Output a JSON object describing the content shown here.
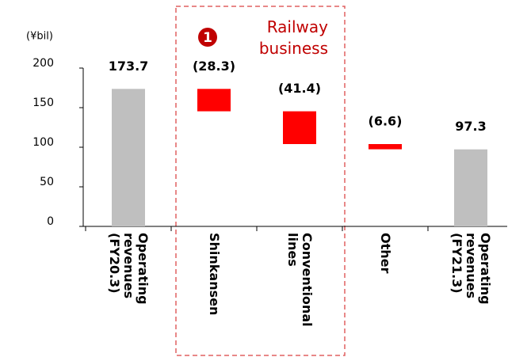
{
  "chart_data": {
    "type": "waterfall",
    "unit_label": "(¥bil)",
    "categories": [
      "Operating revenues (FY20.3)",
      "Shinkansen",
      "Conventional lines",
      "Other",
      "Operating revenues (FY21.3)"
    ],
    "values": [
      173.7,
      -28.3,
      -41.4,
      -6.6,
      97.3
    ],
    "value_labels": [
      "173.7",
      "(28.3)",
      "(41.4)",
      "(6.6)",
      "97.3"
    ],
    "measure": [
      "absolute",
      "relative",
      "relative",
      "relative",
      "absolute"
    ],
    "colors": {
      "absolute": "#bfbfbf",
      "relative": "#ff0000"
    },
    "ylim": [
      0,
      200
    ],
    "yticks": [
      0,
      50,
      100,
      150,
      200
    ],
    "annotation": {
      "marker": "1",
      "text": "Railway business",
      "color": "#c00000"
    }
  }
}
